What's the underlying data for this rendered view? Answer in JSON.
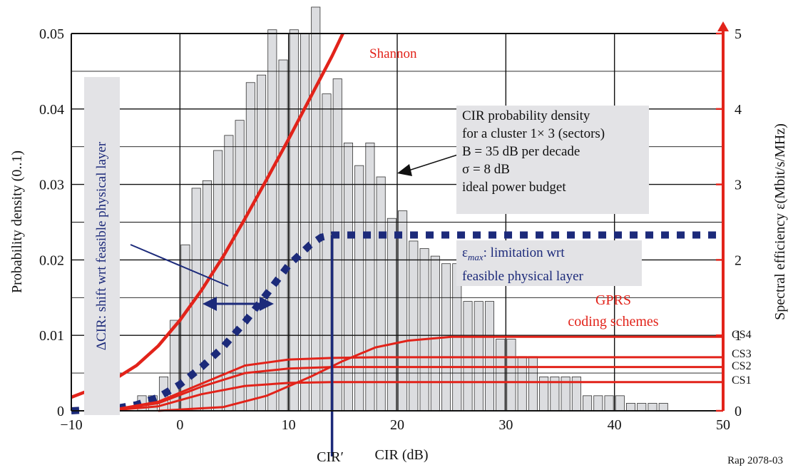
{
  "chart_data": {
    "type": "bar",
    "xlabel": "CIR (dB)",
    "ylabel": "Probability density (0..1)",
    "y2label": "Spectral efficiency ε(Mbit/s/MHz)",
    "xlim": [
      -10,
      50
    ],
    "ylim": [
      0,
      0.05
    ],
    "y2lim": [
      0,
      5
    ],
    "xticks": [
      "−10",
      "0",
      "10",
      "20",
      "30",
      "40",
      "50"
    ],
    "yticks": [
      "0",
      "0.01",
      "0.02",
      "0.03",
      "0.04",
      "0.05"
    ],
    "y2ticks": [
      "0",
      "1",
      "2",
      "3",
      "4",
      "5"
    ],
    "grid": true,
    "histogram": {
      "bin_width_db": 1,
      "bins": [
        {
          "x": -4,
          "y": 0.002
        },
        {
          "x": -3,
          "y": 0.002
        },
        {
          "x": -2,
          "y": 0.0045
        },
        {
          "x": -1,
          "y": 0.012
        },
        {
          "x": 0,
          "y": 0.022
        },
        {
          "x": 1,
          "y": 0.0295
        },
        {
          "x": 2,
          "y": 0.0305
        },
        {
          "x": 3,
          "y": 0.0345
        },
        {
          "x": 4,
          "y": 0.0365
        },
        {
          "x": 5,
          "y": 0.0385
        },
        {
          "x": 6,
          "y": 0.0435
        },
        {
          "x": 7,
          "y": 0.0445
        },
        {
          "x": 8,
          "y": 0.0505
        },
        {
          "x": 9,
          "y": 0.0465
        },
        {
          "x": 10,
          "y": 0.0505
        },
        {
          "x": 11,
          "y": 0.05
        },
        {
          "x": 12,
          "y": 0.0535
        },
        {
          "x": 13,
          "y": 0.042
        },
        {
          "x": 14,
          "y": 0.044
        },
        {
          "x": 15,
          "y": 0.0355
        },
        {
          "x": 16,
          "y": 0.0325
        },
        {
          "x": 17,
          "y": 0.0355
        },
        {
          "x": 18,
          "y": 0.031
        },
        {
          "x": 19,
          "y": 0.0255
        },
        {
          "x": 20,
          "y": 0.0265
        },
        {
          "x": 21,
          "y": 0.0225
        },
        {
          "x": 22,
          "y": 0.0215
        },
        {
          "x": 23,
          "y": 0.0205
        },
        {
          "x": 24,
          "y": 0.0195
        },
        {
          "x": 25,
          "y": 0.0195
        },
        {
          "x": 26,
          "y": 0.0145
        },
        {
          "x": 27,
          "y": 0.0145
        },
        {
          "x": 28,
          "y": 0.0145
        },
        {
          "x": 29,
          "y": 0.0095
        },
        {
          "x": 30,
          "y": 0.0095
        },
        {
          "x": 31,
          "y": 0.0072
        },
        {
          "x": 32,
          "y": 0.0072
        },
        {
          "x": 33,
          "y": 0.0045
        },
        {
          "x": 34,
          "y": 0.0045
        },
        {
          "x": 35,
          "y": 0.0045
        },
        {
          "x": 36,
          "y": 0.0045
        },
        {
          "x": 37,
          "y": 0.002
        },
        {
          "x": 38,
          "y": 0.002
        },
        {
          "x": 39,
          "y": 0.002
        },
        {
          "x": 40,
          "y": 0.002
        },
        {
          "x": 41,
          "y": 0.001
        },
        {
          "x": 42,
          "y": 0.001
        },
        {
          "x": 43,
          "y": 0.001
        },
        {
          "x": 44,
          "y": 0.001
        }
      ]
    },
    "series": [
      {
        "name": "Shannon",
        "axis": "y2",
        "color": "#e2231a",
        "x": [
          -10,
          -8,
          -6,
          -4,
          -2,
          0,
          2,
          4,
          6,
          8,
          10,
          12,
          14,
          15
        ],
        "y": [
          0.18,
          0.29,
          0.42,
          0.6,
          0.86,
          1.2,
          1.6,
          2.05,
          2.55,
          3.07,
          3.6,
          4.15,
          4.7,
          5.0
        ]
      },
      {
        "name": "εmax",
        "axis": "y2",
        "color": "#1c2a7a",
        "style": "dashed",
        "x": [
          -10,
          -6,
          -4,
          -2,
          0,
          2,
          4,
          6,
          8,
          10,
          12,
          13,
          14,
          15,
          20,
          30,
          40,
          50
        ],
        "y": [
          0.0,
          0.03,
          0.08,
          0.18,
          0.35,
          0.58,
          0.85,
          1.18,
          1.55,
          1.93,
          2.2,
          2.3,
          2.33,
          2.33,
          2.33,
          2.33,
          2.33,
          2.33
        ]
      },
      {
        "name": "CS4",
        "axis": "y2",
        "color": "#e2231a",
        "x": [
          -2,
          4,
          8,
          12,
          15,
          18,
          21,
          25,
          30,
          50
        ],
        "y": [
          0.0,
          0.05,
          0.2,
          0.45,
          0.66,
          0.84,
          0.93,
          0.98,
          0.98,
          0.98
        ]
      },
      {
        "name": "CS3",
        "axis": "y2",
        "color": "#e2231a",
        "x": [
          -6,
          -2,
          2,
          6,
          10,
          14,
          18,
          50
        ],
        "y": [
          0.02,
          0.12,
          0.36,
          0.6,
          0.68,
          0.7,
          0.71,
          0.71
        ]
      },
      {
        "name": "CS2",
        "axis": "y2",
        "color": "#e2231a",
        "x": [
          -6,
          -2,
          2,
          6,
          10,
          14,
          50
        ],
        "y": [
          0.02,
          0.1,
          0.32,
          0.5,
          0.56,
          0.58,
          0.58
        ]
      },
      {
        "name": "CS1",
        "axis": "y2",
        "color": "#e2231a",
        "x": [
          -6,
          -2,
          2,
          6,
          10,
          14,
          50
        ],
        "y": [
          0.01,
          0.06,
          0.22,
          0.33,
          0.37,
          0.38,
          0.38
        ]
      }
    ],
    "cir_prime_x": 14,
    "annotations": {
      "shannon_label": "Shannon",
      "gprs_line1": "GPRS",
      "gprs_line2": "coding schemes",
      "cs_labels": [
        "CS4",
        "CS3",
        "CS2",
        "CS1"
      ],
      "cir_box": [
        "CIR probability density",
        "for a cluster 1× 3 (sectors)",
        "B = 35 dB per decade",
        "σ = 8 dB",
        "ideal power budget"
      ],
      "emax_prefix": "ε",
      "emax_sub": "max",
      "emax_line1_rest": ": limitation wrt",
      "emax_line2": "feasible physical layer",
      "delta_cir_label": "ΔCIR: shift wrt feasible physical layer",
      "cir_prime_label": "CIR′",
      "source": "Rap 2078-03"
    },
    "colors": {
      "bars_fill": "#dcdde0",
      "grid": "#111111",
      "red": "#e2231a",
      "blue": "#1c2a7a",
      "box": "#e3e3e6"
    }
  }
}
